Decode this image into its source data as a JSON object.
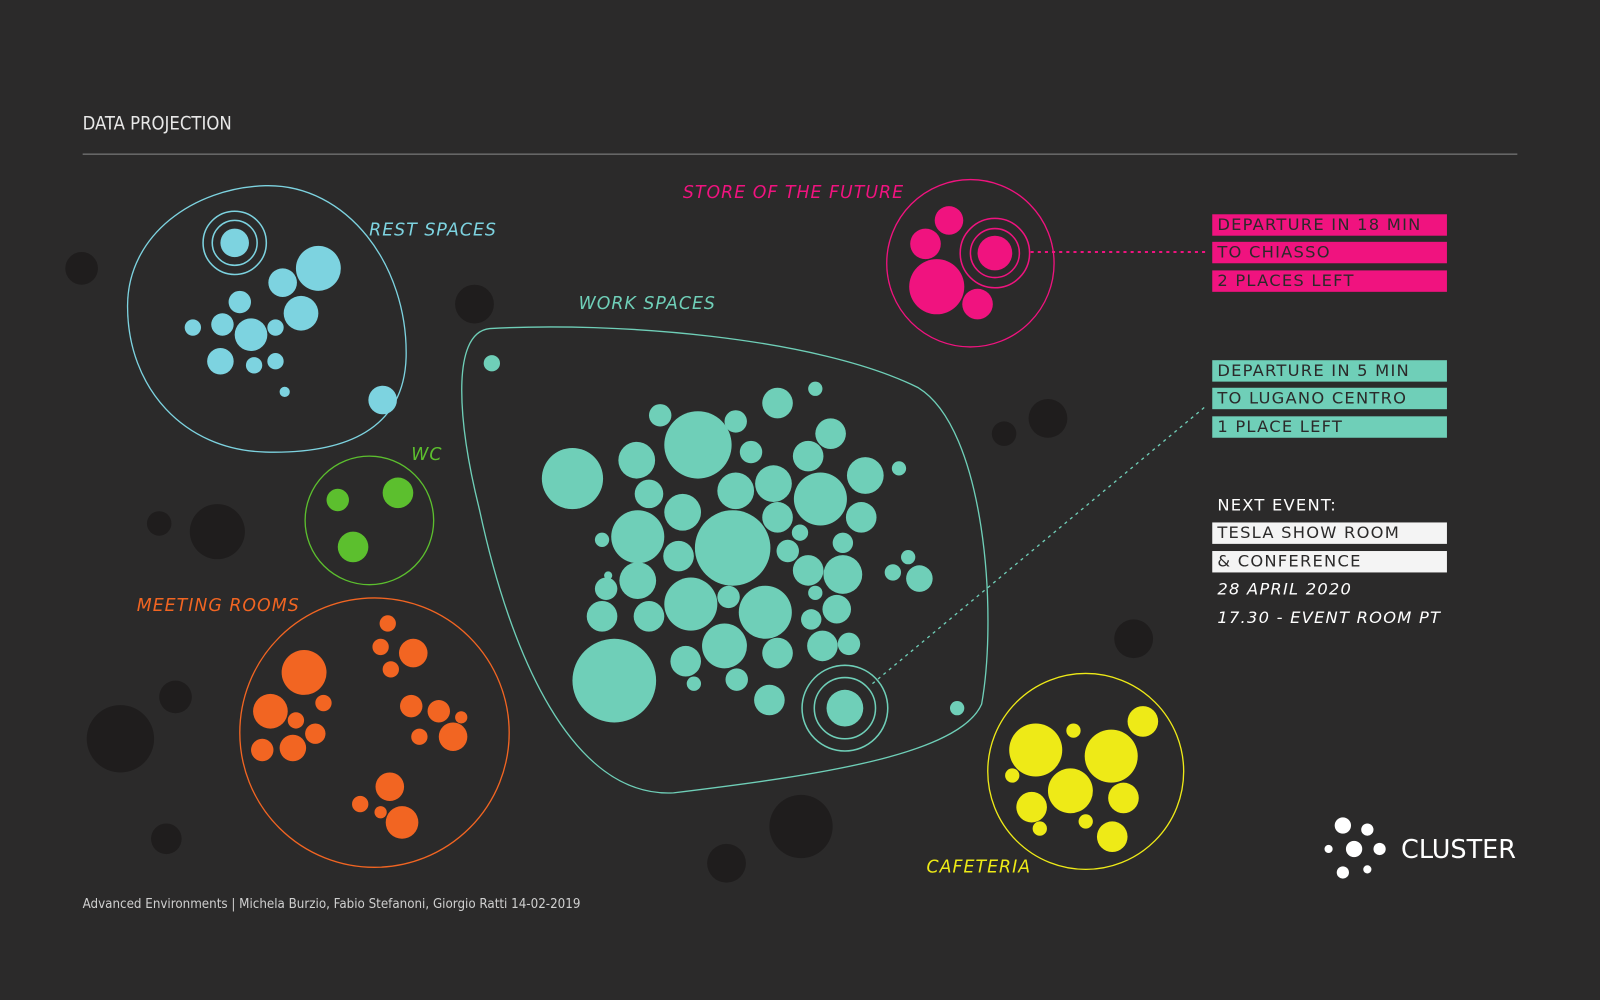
{
  "header": {
    "title": "DATA PROJECTION"
  },
  "zones": {
    "rest": "REST SPACES",
    "store": "STORE OF THE FUTURE",
    "work": "WORK SPACES",
    "wc": "WC",
    "meeting": "MEETING ROOMS",
    "cafeteria": "CAFETERIA"
  },
  "departures": [
    {
      "lines": [
        "DEPARTURE IN 18 MIN",
        "TO CHIASSO",
        "2 PLACES LEFT"
      ]
    },
    {
      "lines": [
        "DEPARTURE IN 5 MIN",
        "TO LUGANO CENTRO",
        "1 PLACE LEFT"
      ]
    }
  ],
  "next_event": {
    "heading": "NEXT EVENT:",
    "lines": [
      "TESLA SHOW ROOM",
      "& CONFERENCE"
    ],
    "date": "28 APRIL 2020",
    "time_place": "17.30 - EVENT ROOM PT"
  },
  "footer": "Advanced Environments | Michela Burzio, Fabio Stefanoni, Giorgio Ratti 14-02-2019",
  "brand": "CLUSTER"
}
